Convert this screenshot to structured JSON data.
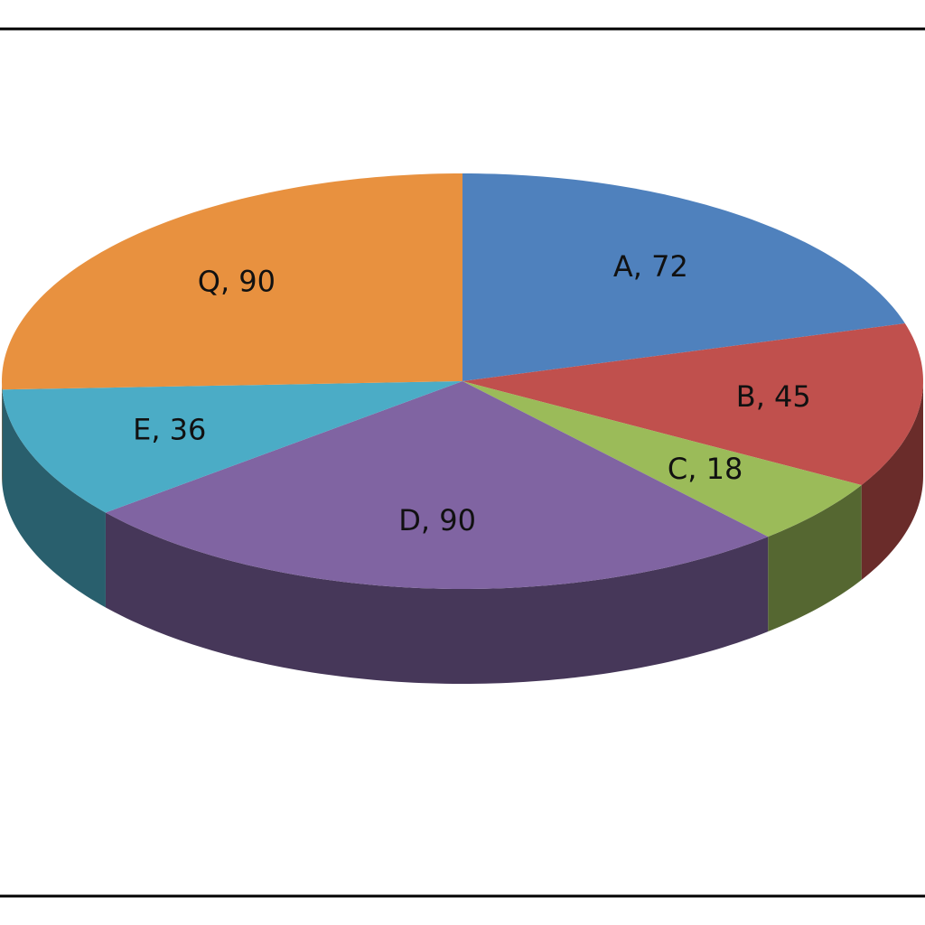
{
  "chart_data": {
    "type": "pie3d",
    "categories": [
      "A",
      "B",
      "C",
      "D",
      "E",
      "Q"
    ],
    "values": [
      72,
      45,
      18,
      90,
      36,
      90
    ],
    "value_labels": [
      "A, 72",
      "B, 45",
      "C, 18",
      "D, 90",
      "E, 36",
      "Q, 90"
    ],
    "colors": [
      "#4f81bd",
      "#c0504d",
      "#9bbb59",
      "#8064a2",
      "#4bacc6",
      "#e8913f"
    ]
  }
}
